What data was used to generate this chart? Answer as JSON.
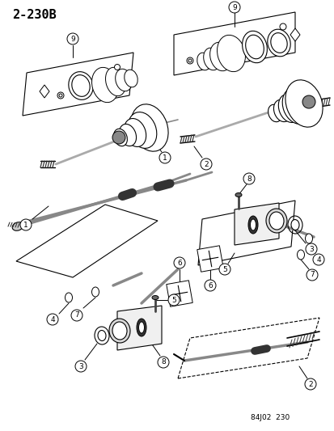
{
  "title": "2-230B",
  "footer": "84J02  230",
  "background": "#ffffff",
  "fig_width": 4.14,
  "fig_height": 5.33,
  "title_fontsize": 11,
  "footer_fontsize": 6.5
}
